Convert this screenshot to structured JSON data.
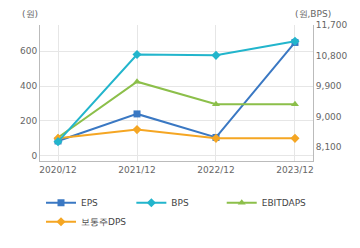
{
  "chart_data": {
    "type": "line",
    "categories": [
      "2020/12",
      "2021/12",
      "2022/12",
      "2023/12"
    ],
    "y_label": "(원)",
    "y2_label": "(원,BPS)",
    "ylim": [
      -30,
      750
    ],
    "yticks": [
      0,
      200,
      400,
      600
    ],
    "y2lim": [
      7690,
      11700
    ],
    "y2ticks": [
      {
        "value": 8100,
        "label": "8,100"
      },
      {
        "value": 9000,
        "label": "9,000"
      },
      {
        "value": 9900,
        "label": "9,900"
      },
      {
        "value": 10800,
        "label": "10,800"
      },
      {
        "value": 11700,
        "label": "11,700"
      }
    ],
    "grid": true,
    "legend": "bottom",
    "series": [
      {
        "name": "EPS",
        "color": "#3a78c3",
        "marker": "square",
        "values": [
          85,
          240,
          105,
          650
        ]
      },
      {
        "name": "BPS",
        "color": "#22b5cc",
        "marker": "diamond",
        "axis": "y2",
        "values": [
          8260,
          10830,
          10805,
          11220
        ]
      },
      {
        "name": "EBITDAPS",
        "color": "#8cbf4a",
        "marker": "triangle-up",
        "values": [
          105,
          425,
          295,
          295
        ]
      },
      {
        "name": "보통주DPS",
        "color": "#f5a623",
        "marker": "diamond",
        "values": [
          100,
          150,
          100,
          100
        ]
      }
    ]
  }
}
